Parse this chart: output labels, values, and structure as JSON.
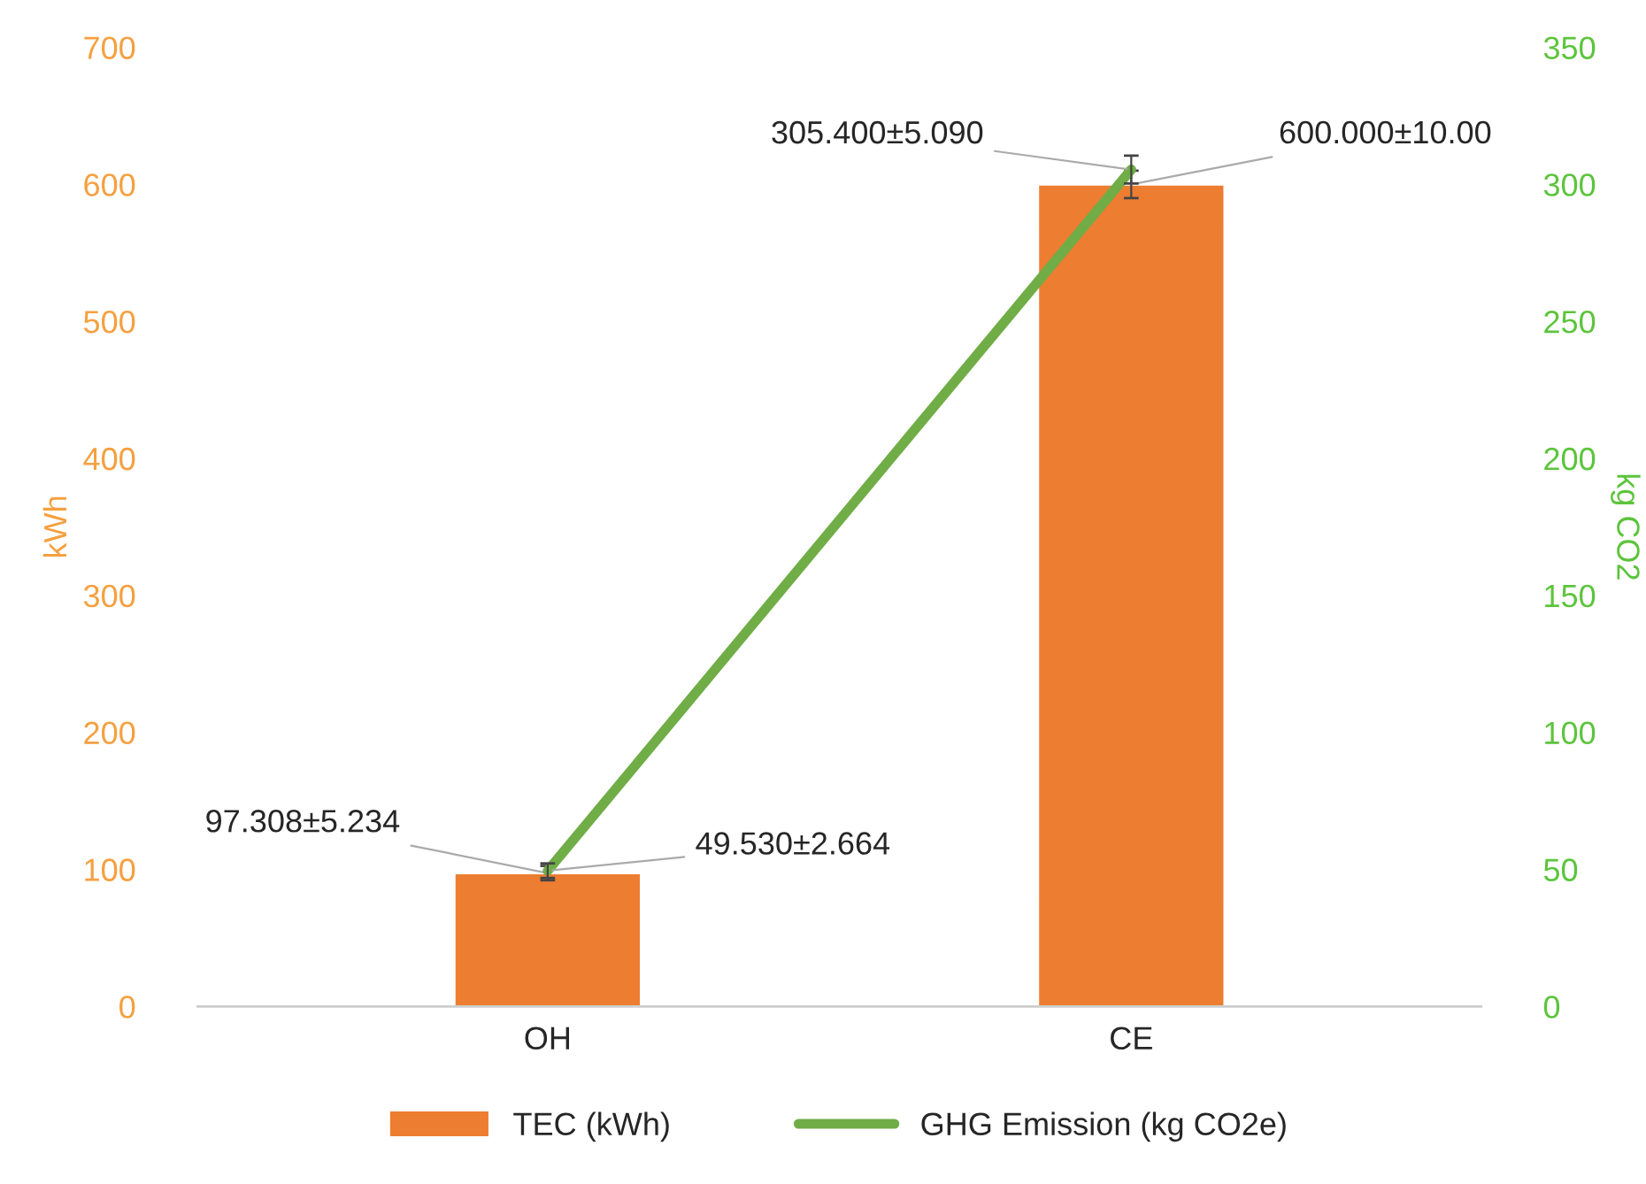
{
  "chart_data": {
    "type": "bar",
    "categories": [
      "OH",
      "CE"
    ],
    "series": [
      {
        "name": "TEC (kWh)",
        "color": "#ed7d31",
        "values": [
          97.308,
          600.0
        ],
        "errors": [
          5.234,
          10.0
        ],
        "value_labels": [
          "97.308±5.234",
          "600.000±10.00"
        ]
      },
      {
        "name": "GHG Emission (kg CO2e)",
        "type": "line",
        "axis": "y2",
        "color": "#70ad47",
        "values": [
          49.53,
          305.4
        ],
        "errors": [
          2.664,
          5.09
        ],
        "value_labels": [
          "49.530±2.664",
          "305.400±5.090"
        ]
      }
    ],
    "ylabel": "kWh",
    "y2label": "kg CO2",
    "ylim": [
      0,
      700
    ],
    "yticks": [
      0,
      100,
      200,
      300,
      400,
      500,
      600,
      700
    ],
    "y2lim": [
      0,
      350
    ],
    "y2ticks": [
      0,
      50,
      100,
      150,
      200,
      250,
      300,
      350
    ],
    "legend": "bottom",
    "grid": false,
    "marker": "none"
  }
}
